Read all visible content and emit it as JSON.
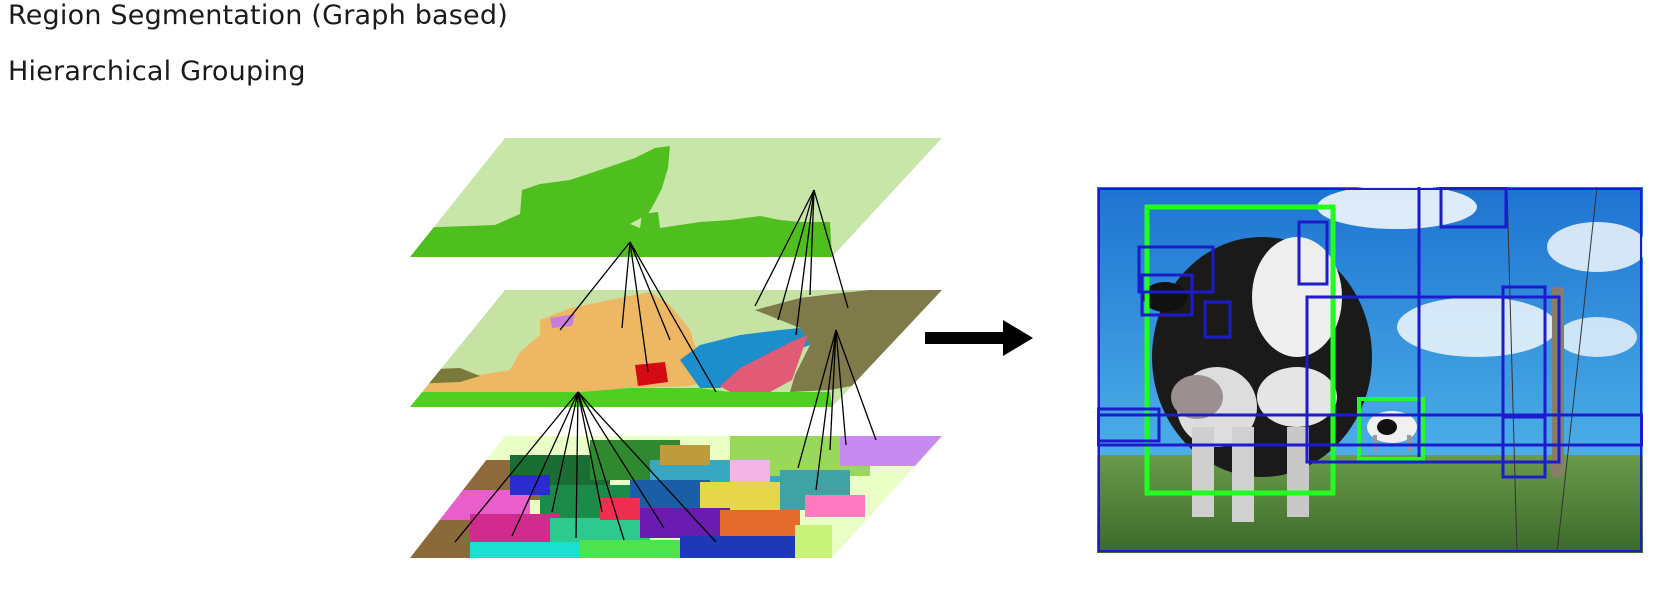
{
  "text": {
    "line1": "Region Segmentation (Graph based)",
    "line2": "Hierarchical Grouping"
  },
  "colors": {
    "layer_top_bg": "#c8e6a7",
    "layer_top_fill": "#4fbf1f",
    "layer_mid_bg": "#c6e3a4",
    "layer_bottom_bg": "#e9ffc5",
    "arrow": "#000000",
    "sky": "#2f8fd6",
    "grass": "#4f7b3a",
    "box_green": "#21ff21",
    "box_blue": "#1c1ccc"
  },
  "icons": {
    "arrow": "right-arrow-icon"
  }
}
